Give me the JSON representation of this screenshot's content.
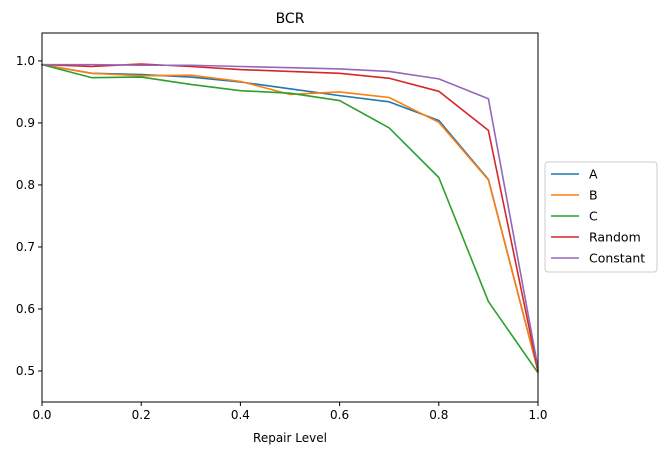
{
  "chart_data": {
    "type": "line",
    "title": "BCR",
    "xlabel": "Repair Level",
    "ylabel": "",
    "xlim": [
      0.0,
      1.0
    ],
    "ylim": [
      0.45,
      1.045
    ],
    "xticks": [
      "0.0",
      "0.2",
      "0.4",
      "0.6",
      "0.8",
      "1.0"
    ],
    "yticks": [
      "0.5",
      "0.6",
      "0.7",
      "0.8",
      "0.9",
      "1.0"
    ],
    "grid": false,
    "legend_position": "center-right-outside",
    "x": [
      0.0,
      0.1,
      0.2,
      0.3,
      0.4,
      0.5,
      0.6,
      0.7,
      0.8,
      0.9,
      1.0
    ],
    "series": [
      {
        "name": "A",
        "color": "#1f77b4",
        "values": [
          0.994,
          0.98,
          0.978,
          0.974,
          0.966,
          0.955,
          0.944,
          0.934,
          0.904,
          0.809,
          0.5
        ]
      },
      {
        "name": "B",
        "color": "#ff7f0e",
        "values": [
          0.994,
          0.98,
          0.976,
          0.977,
          0.967,
          0.946,
          0.95,
          0.941,
          0.901,
          0.808,
          0.5
        ]
      },
      {
        "name": "C",
        "color": "#2ca02c",
        "values": [
          0.994,
          0.973,
          0.974,
          0.962,
          0.952,
          0.948,
          0.936,
          0.892,
          0.812,
          0.612,
          0.497
        ]
      },
      {
        "name": "Random",
        "color": "#d62728",
        "values": [
          0.994,
          0.991,
          0.995,
          0.991,
          0.986,
          0.983,
          0.98,
          0.972,
          0.951,
          0.888,
          0.5
        ]
      },
      {
        "name": "Constant",
        "color": "#9467bd",
        "values": [
          0.994,
          0.994,
          0.993,
          0.993,
          0.991,
          0.989,
          0.987,
          0.983,
          0.971,
          0.939,
          0.505
        ]
      }
    ]
  }
}
